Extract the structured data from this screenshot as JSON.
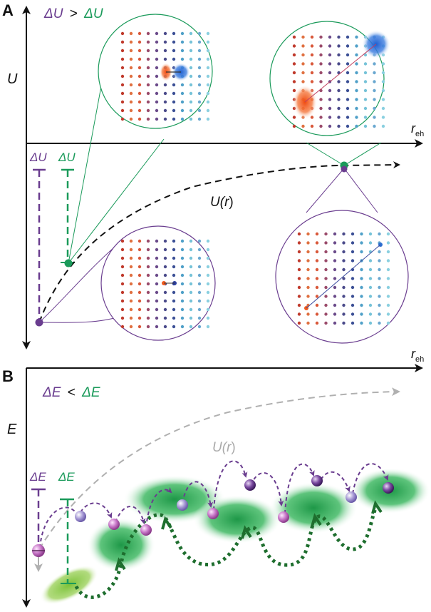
{
  "panel_a": {
    "label": "A",
    "inequality": {
      "left": "ΔU",
      "op": ">",
      "right": "ΔU"
    },
    "y_axis": "U",
    "x_axis": {
      "main": "r",
      "sub": "eh"
    },
    "curve_label": {
      "pre": "U(",
      "var": "r",
      "post": ")"
    },
    "delta_purple": "ΔU",
    "delta_green": "ΔU"
  },
  "panel_b": {
    "label": "B",
    "inequality": {
      "left": "ΔE",
      "op": "<",
      "right": "ΔE"
    },
    "y_axis": "E",
    "x_axis": {
      "main": "r",
      "sub": "eh"
    },
    "curve_label": {
      "pre": "U(",
      "var": "r",
      "post": ")"
    },
    "delta_purple": "ΔE",
    "delta_green": "ΔE"
  },
  "colors": {
    "purple": "#6a3d8f",
    "green": "#1a9a5a",
    "dark_green": "#1e6e2e",
    "grey": "#aaaaaa",
    "hole": "#f05a1e",
    "electron": "#2d6fd1"
  }
}
